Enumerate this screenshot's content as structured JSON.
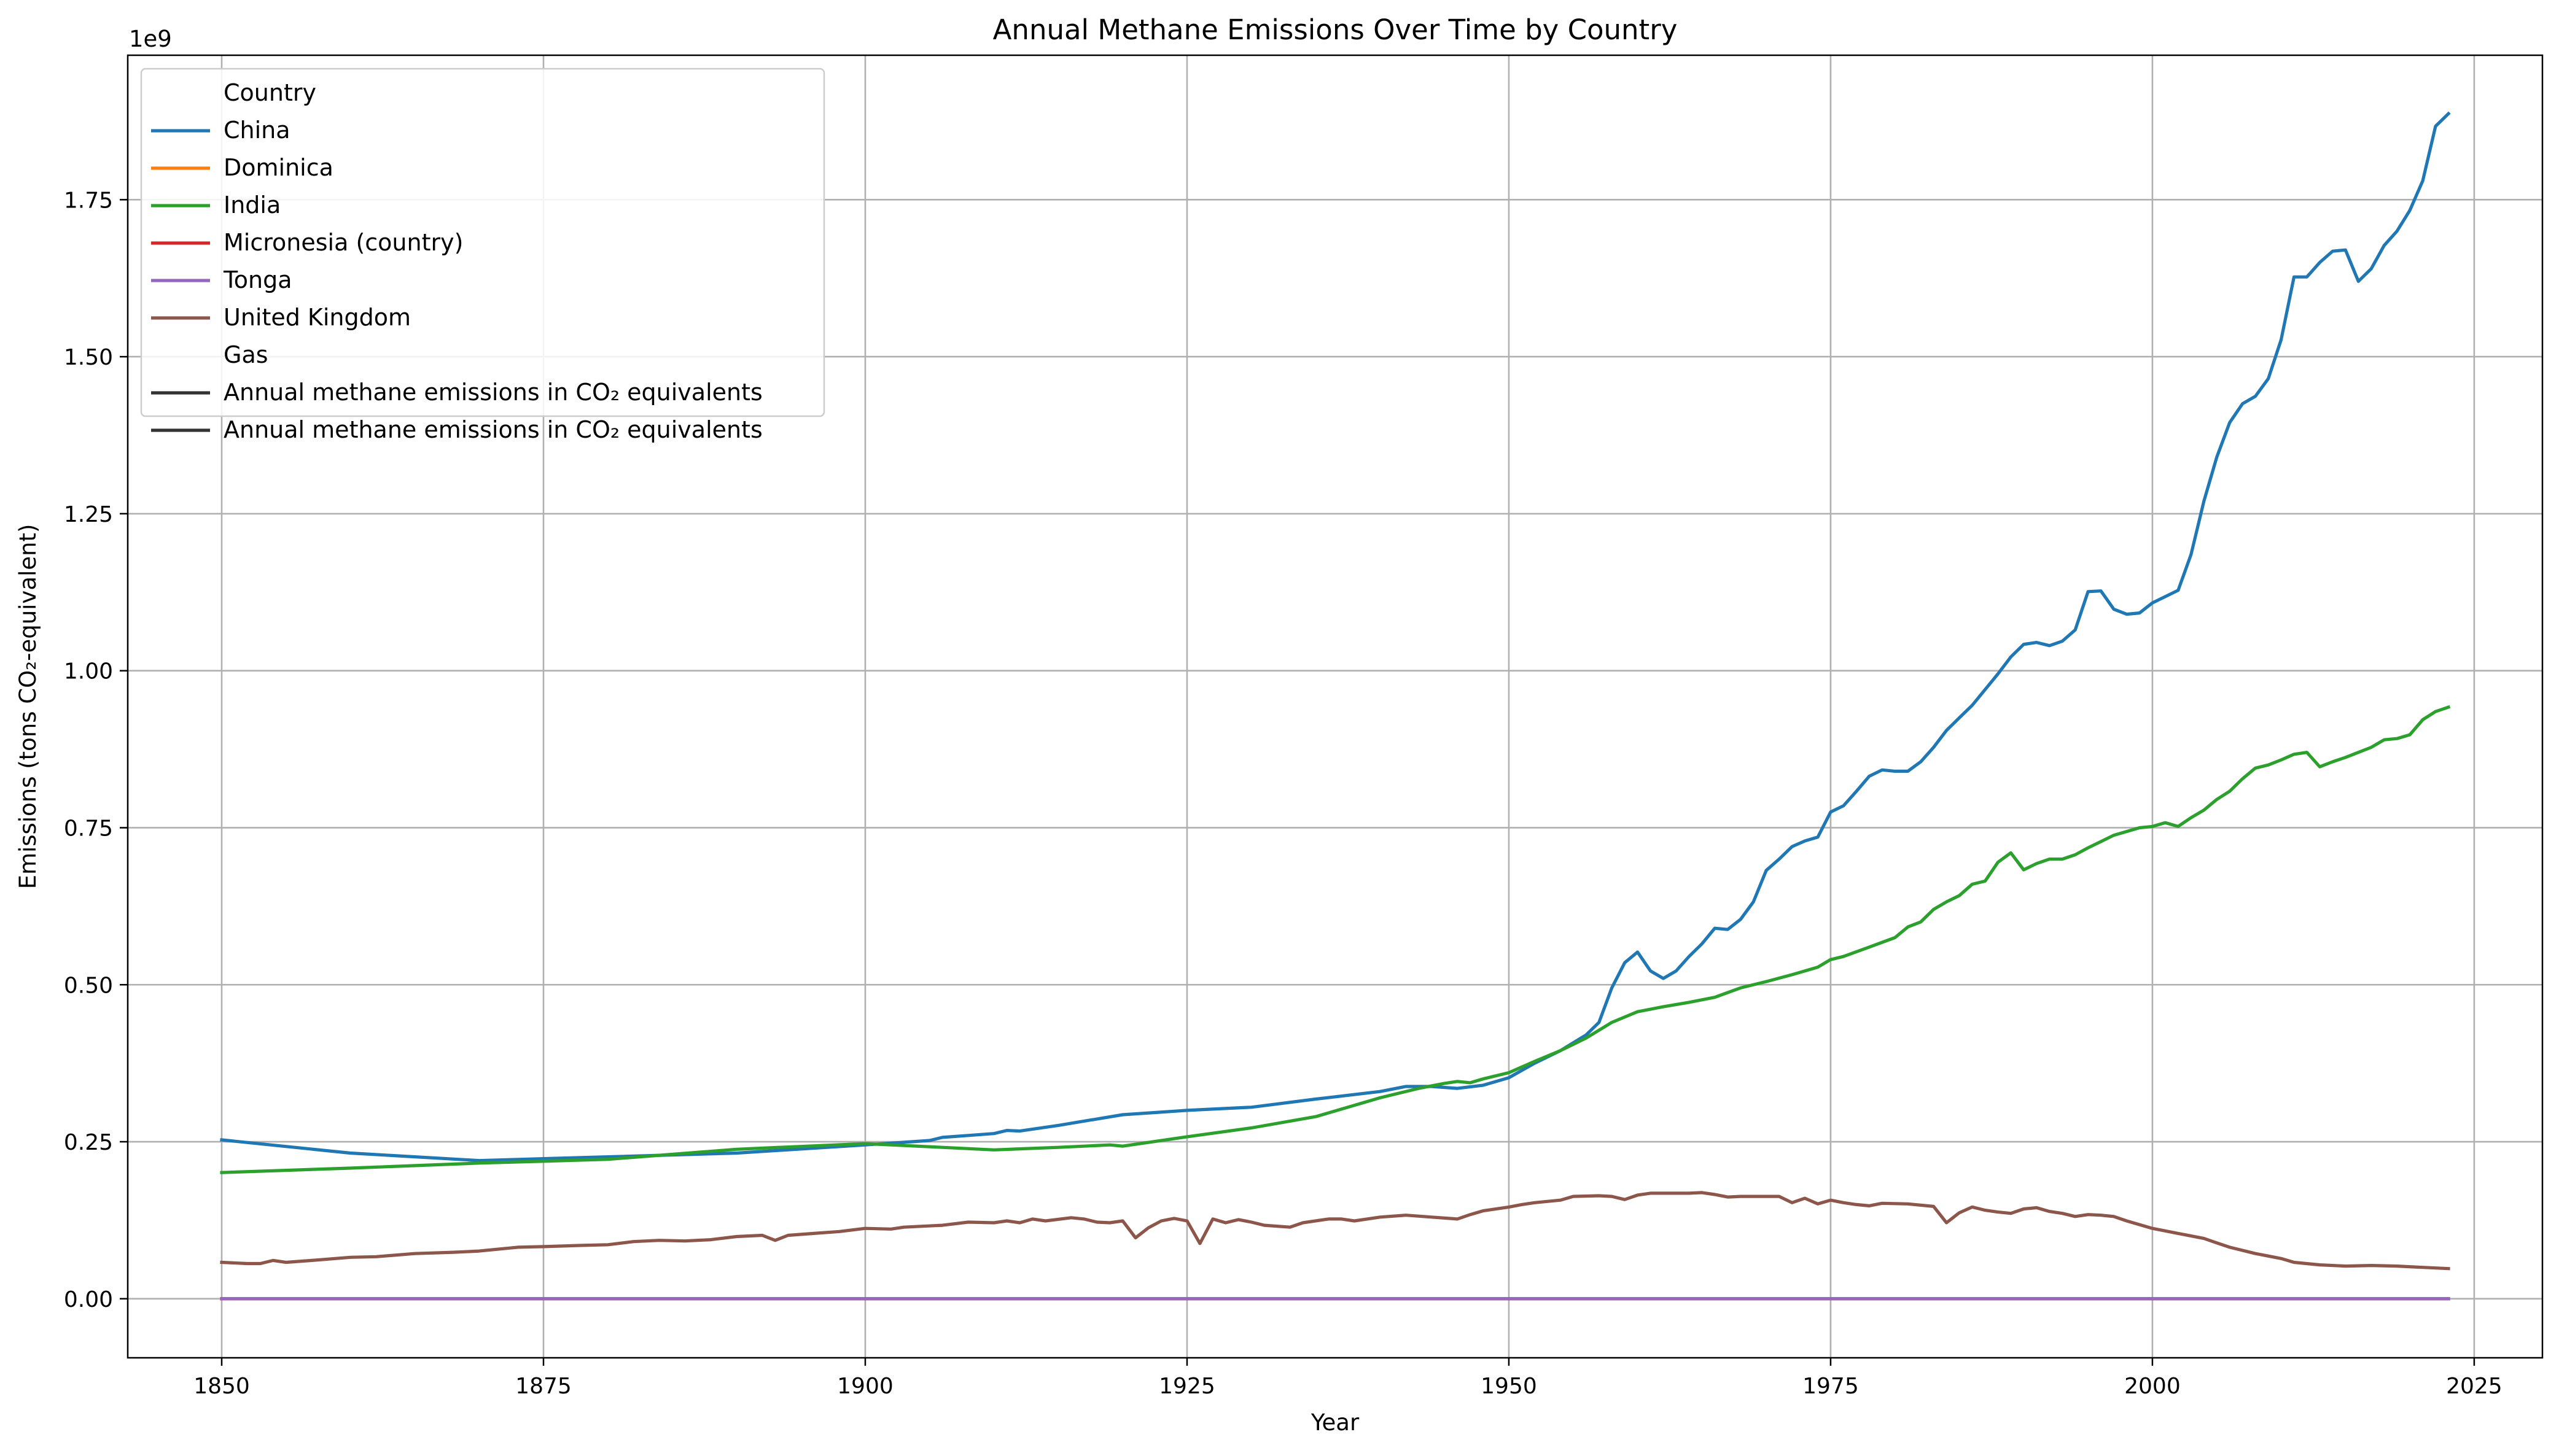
{
  "chart_data": {
    "type": "line",
    "title": "Annual Methane Emissions Over Time by Country",
    "xlabel": "Year",
    "ylabel": "Emissions (tons CO₂-equivalent)",
    "y_offset_label": "1e9",
    "xlim": [
      1842.7,
      2030.3
    ],
    "ylim": [
      -0.094,
      1.98
    ],
    "y_unit_multiplier": 1000000000,
    "x_ticks": [
      1850,
      1875,
      1900,
      1925,
      1950,
      1975,
      2000,
      2025
    ],
    "x_tick_labels": [
      "1850",
      "1875",
      "1900",
      "1925",
      "1950",
      "1975",
      "2000",
      "2025"
    ],
    "y_ticks": [
      0,
      0.25,
      0.5,
      0.75,
      1.0,
      1.25,
      1.5,
      1.75
    ],
    "y_tick_labels": [
      "0.00",
      "0.25",
      "0.50",
      "0.75",
      "1.00",
      "1.25",
      "1.50",
      "1.75"
    ],
    "grid": true,
    "legend_position": "top-left",
    "legend": {
      "country_header": "Country",
      "gas_header": "Gas",
      "gas_entry": {
        "label": "Annual methane emissions in CO₂ equivalents",
        "color": "#333333"
      }
    },
    "series": [
      {
        "name": "China",
        "color": "#1f77b4",
        "points": [
          [
            1850,
            0.253
          ],
          [
            1860,
            0.232
          ],
          [
            1870,
            0.22
          ],
          [
            1880,
            0.226
          ],
          [
            1890,
            0.232
          ],
          [
            1900,
            0.245
          ],
          [
            1905,
            0.252
          ],
          [
            1906,
            0.257
          ],
          [
            1908,
            0.26
          ],
          [
            1910,
            0.263
          ],
          [
            1911,
            0.268
          ],
          [
            1912,
            0.267
          ],
          [
            1915,
            0.276
          ],
          [
            1920,
            0.293
          ],
          [
            1925,
            0.3
          ],
          [
            1930,
            0.305
          ],
          [
            1935,
            0.318
          ],
          [
            1940,
            0.33
          ],
          [
            1942,
            0.338
          ],
          [
            1944,
            0.338
          ],
          [
            1946,
            0.335
          ],
          [
            1948,
            0.34
          ],
          [
            1950,
            0.352
          ],
          [
            1952,
            0.375
          ],
          [
            1954,
            0.395
          ],
          [
            1956,
            0.42
          ],
          [
            1957,
            0.44
          ],
          [
            1958,
            0.495
          ],
          [
            1959,
            0.535
          ],
          [
            1960,
            0.552
          ],
          [
            1961,
            0.522
          ],
          [
            1962,
            0.51
          ],
          [
            1963,
            0.522
          ],
          [
            1964,
            0.545
          ],
          [
            1965,
            0.565
          ],
          [
            1966,
            0.59
          ],
          [
            1967,
            0.588
          ],
          [
            1968,
            0.604
          ],
          [
            1969,
            0.632
          ],
          [
            1970,
            0.682
          ],
          [
            1971,
            0.7
          ],
          [
            1972,
            0.72
          ],
          [
            1973,
            0.729
          ],
          [
            1974,
            0.735
          ],
          [
            1975,
            0.775
          ],
          [
            1976,
            0.785
          ],
          [
            1977,
            0.808
          ],
          [
            1978,
            0.832
          ],
          [
            1979,
            0.842
          ],
          [
            1980,
            0.84
          ],
          [
            1981,
            0.84
          ],
          [
            1982,
            0.855
          ],
          [
            1983,
            0.878
          ],
          [
            1984,
            0.905
          ],
          [
            1985,
            0.925
          ],
          [
            1986,
            0.945
          ],
          [
            1987,
            0.97
          ],
          [
            1988,
            0.995
          ],
          [
            1989,
            1.022
          ],
          [
            1990,
            1.042
          ],
          [
            1991,
            1.045
          ],
          [
            1992,
            1.04
          ],
          [
            1993,
            1.047
          ],
          [
            1994,
            1.065
          ],
          [
            1995,
            1.126
          ],
          [
            1996,
            1.127
          ],
          [
            1997,
            1.098
          ],
          [
            1998,
            1.09
          ],
          [
            1999,
            1.092
          ],
          [
            2000,
            1.108
          ],
          [
            2001,
            1.118
          ],
          [
            2002,
            1.128
          ],
          [
            2003,
            1.185
          ],
          [
            2004,
            1.27
          ],
          [
            2005,
            1.34
          ],
          [
            2006,
            1.395
          ],
          [
            2007,
            1.425
          ],
          [
            2008,
            1.437
          ],
          [
            2009,
            1.465
          ],
          [
            2010,
            1.527
          ],
          [
            2011,
            1.627
          ],
          [
            2012,
            1.627
          ],
          [
            2013,
            1.65
          ],
          [
            2014,
            1.668
          ],
          [
            2015,
            1.67
          ],
          [
            2016,
            1.62
          ],
          [
            2017,
            1.64
          ],
          [
            2018,
            1.677
          ],
          [
            2019,
            1.7
          ],
          [
            2020,
            1.733
          ],
          [
            2021,
            1.78
          ],
          [
            2022,
            1.867
          ],
          [
            2023,
            1.887
          ]
        ]
      },
      {
        "name": "Dominica",
        "color": "#ff7f0e",
        "points": [
          [
            1850,
            0.0
          ],
          [
            2023,
            0.0
          ]
        ]
      },
      {
        "name": "India",
        "color": "#2ca02c",
        "points": [
          [
            1850,
            0.201
          ],
          [
            1860,
            0.208
          ],
          [
            1870,
            0.216
          ],
          [
            1880,
            0.222
          ],
          [
            1890,
            0.238
          ],
          [
            1900,
            0.247
          ],
          [
            1905,
            0.242
          ],
          [
            1910,
            0.237
          ],
          [
            1915,
            0.241
          ],
          [
            1919,
            0.245
          ],
          [
            1920,
            0.243
          ],
          [
            1925,
            0.258
          ],
          [
            1930,
            0.272
          ],
          [
            1935,
            0.29
          ],
          [
            1940,
            0.32
          ],
          [
            1943,
            0.335
          ],
          [
            1945,
            0.343
          ],
          [
            1946,
            0.346
          ],
          [
            1947,
            0.344
          ],
          [
            1948,
            0.35
          ],
          [
            1950,
            0.36
          ],
          [
            1952,
            0.378
          ],
          [
            1954,
            0.395
          ],
          [
            1956,
            0.415
          ],
          [
            1958,
            0.44
          ],
          [
            1960,
            0.457
          ],
          [
            1962,
            0.465
          ],
          [
            1964,
            0.472
          ],
          [
            1966,
            0.48
          ],
          [
            1968,
            0.495
          ],
          [
            1970,
            0.505
          ],
          [
            1972,
            0.516
          ],
          [
            1974,
            0.528
          ],
          [
            1975,
            0.54
          ],
          [
            1976,
            0.545
          ],
          [
            1978,
            0.56
          ],
          [
            1980,
            0.575
          ],
          [
            1981,
            0.592
          ],
          [
            1982,
            0.6
          ],
          [
            1983,
            0.62
          ],
          [
            1984,
            0.632
          ],
          [
            1985,
            0.642
          ],
          [
            1986,
            0.66
          ],
          [
            1987,
            0.665
          ],
          [
            1988,
            0.695
          ],
          [
            1989,
            0.71
          ],
          [
            1990,
            0.683
          ],
          [
            1991,
            0.693
          ],
          [
            1992,
            0.7
          ],
          [
            1993,
            0.7
          ],
          [
            1994,
            0.707
          ],
          [
            1995,
            0.718
          ],
          [
            1996,
            0.728
          ],
          [
            1997,
            0.738
          ],
          [
            1998,
            0.744
          ],
          [
            1999,
            0.75
          ],
          [
            2000,
            0.752
          ],
          [
            2001,
            0.758
          ],
          [
            2002,
            0.752
          ],
          [
            2003,
            0.766
          ],
          [
            2004,
            0.778
          ],
          [
            2005,
            0.795
          ],
          [
            2006,
            0.808
          ],
          [
            2007,
            0.828
          ],
          [
            2008,
            0.845
          ],
          [
            2009,
            0.85
          ],
          [
            2010,
            0.858
          ],
          [
            2011,
            0.867
          ],
          [
            2012,
            0.87
          ],
          [
            2013,
            0.847
          ],
          [
            2014,
            0.855
          ],
          [
            2015,
            0.862
          ],
          [
            2016,
            0.87
          ],
          [
            2017,
            0.878
          ],
          [
            2018,
            0.89
          ],
          [
            2019,
            0.892
          ],
          [
            2020,
            0.898
          ],
          [
            2021,
            0.922
          ],
          [
            2022,
            0.935
          ],
          [
            2023,
            0.942
          ]
        ]
      },
      {
        "name": "Micronesia (country)",
        "color": "#d62728",
        "points": [
          [
            1850,
            0.0
          ],
          [
            2023,
            0.0
          ]
        ]
      },
      {
        "name": "Tonga",
        "color": "#9467bd",
        "points": [
          [
            1850,
            0.0
          ],
          [
            2023,
            0.0
          ]
        ]
      },
      {
        "name": "United Kingdom",
        "color": "#8c564b",
        "points": [
          [
            1850,
            0.058
          ],
          [
            1852,
            0.056
          ],
          [
            1853,
            0.056
          ],
          [
            1854,
            0.061
          ],
          [
            1855,
            0.058
          ],
          [
            1857,
            0.061
          ],
          [
            1860,
            0.066
          ],
          [
            1862,
            0.067
          ],
          [
            1865,
            0.072
          ],
          [
            1868,
            0.074
          ],
          [
            1870,
            0.076
          ],
          [
            1873,
            0.082
          ],
          [
            1875,
            0.083
          ],
          [
            1878,
            0.085
          ],
          [
            1880,
            0.086
          ],
          [
            1882,
            0.091
          ],
          [
            1884,
            0.093
          ],
          [
            1886,
            0.092
          ],
          [
            1888,
            0.094
          ],
          [
            1890,
            0.099
          ],
          [
            1892,
            0.101
          ],
          [
            1893,
            0.093
          ],
          [
            1894,
            0.101
          ],
          [
            1896,
            0.104
          ],
          [
            1898,
            0.107
          ],
          [
            1900,
            0.112
          ],
          [
            1902,
            0.111
          ],
          [
            1903,
            0.114
          ],
          [
            1906,
            0.117
          ],
          [
            1908,
            0.122
          ],
          [
            1910,
            0.121
          ],
          [
            1911,
            0.124
          ],
          [
            1912,
            0.121
          ],
          [
            1913,
            0.127
          ],
          [
            1914,
            0.124
          ],
          [
            1916,
            0.129
          ],
          [
            1917,
            0.127
          ],
          [
            1918,
            0.122
          ],
          [
            1919,
            0.121
          ],
          [
            1920,
            0.124
          ],
          [
            1921,
            0.097
          ],
          [
            1922,
            0.113
          ],
          [
            1923,
            0.124
          ],
          [
            1924,
            0.128
          ],
          [
            1925,
            0.124
          ],
          [
            1926,
            0.088
          ],
          [
            1927,
            0.127
          ],
          [
            1928,
            0.121
          ],
          [
            1929,
            0.126
          ],
          [
            1930,
            0.122
          ],
          [
            1931,
            0.117
          ],
          [
            1933,
            0.114
          ],
          [
            1934,
            0.121
          ],
          [
            1936,
            0.127
          ],
          [
            1937,
            0.127
          ],
          [
            1938,
            0.124
          ],
          [
            1940,
            0.13
          ],
          [
            1942,
            0.133
          ],
          [
            1944,
            0.13
          ],
          [
            1946,
            0.127
          ],
          [
            1947,
            0.134
          ],
          [
            1948,
            0.14
          ],
          [
            1950,
            0.146
          ],
          [
            1951,
            0.15
          ],
          [
            1952,
            0.153
          ],
          [
            1954,
            0.157
          ],
          [
            1955,
            0.163
          ],
          [
            1957,
            0.164
          ],
          [
            1958,
            0.163
          ],
          [
            1959,
            0.158
          ],
          [
            1960,
            0.165
          ],
          [
            1961,
            0.168
          ],
          [
            1962,
            0.168
          ],
          [
            1964,
            0.168
          ],
          [
            1965,
            0.169
          ],
          [
            1966,
            0.166
          ],
          [
            1967,
            0.162
          ],
          [
            1968,
            0.163
          ],
          [
            1970,
            0.163
          ],
          [
            1971,
            0.163
          ],
          [
            1972,
            0.153
          ],
          [
            1973,
            0.16
          ],
          [
            1974,
            0.151
          ],
          [
            1975,
            0.157
          ],
          [
            1976,
            0.153
          ],
          [
            1977,
            0.15
          ],
          [
            1978,
            0.148
          ],
          [
            1979,
            0.152
          ],
          [
            1981,
            0.151
          ],
          [
            1983,
            0.147
          ],
          [
            1984,
            0.121
          ],
          [
            1985,
            0.137
          ],
          [
            1986,
            0.146
          ],
          [
            1987,
            0.141
          ],
          [
            1988,
            0.138
          ],
          [
            1989,
            0.136
          ],
          [
            1990,
            0.143
          ],
          [
            1991,
            0.145
          ],
          [
            1992,
            0.139
          ],
          [
            1993,
            0.136
          ],
          [
            1994,
            0.131
          ],
          [
            1995,
            0.134
          ],
          [
            1996,
            0.133
          ],
          [
            1997,
            0.131
          ],
          [
            1998,
            0.124
          ],
          [
            1999,
            0.118
          ],
          [
            2000,
            0.112
          ],
          [
            2002,
            0.104
          ],
          [
            2004,
            0.096
          ],
          [
            2005,
            0.089
          ],
          [
            2006,
            0.082
          ],
          [
            2008,
            0.072
          ],
          [
            2010,
            0.064
          ],
          [
            2011,
            0.058
          ],
          [
            2013,
            0.054
          ],
          [
            2015,
            0.052
          ],
          [
            2017,
            0.053
          ],
          [
            2019,
            0.052
          ],
          [
            2021,
            0.05
          ],
          [
            2023,
            0.048
          ]
        ]
      }
    ]
  }
}
